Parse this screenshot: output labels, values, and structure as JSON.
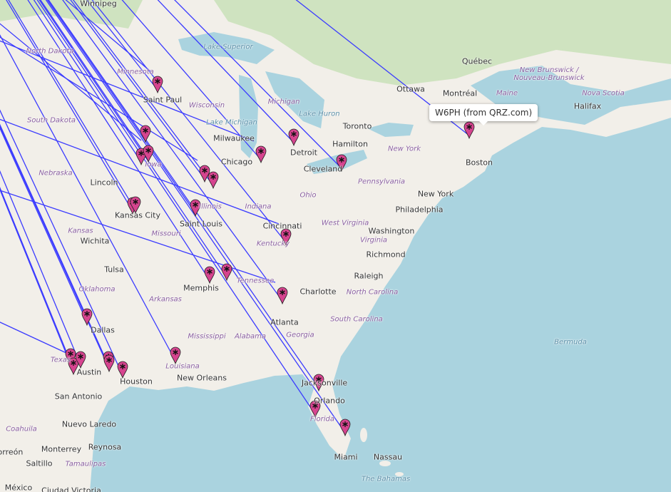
{
  "map": {
    "tooltip": "W6PH (from QRZ.com)",
    "colors": {
      "water": "#aad3df",
      "land": "#f2efe9",
      "forest": "#cfe3c0",
      "line": "#3b3bff",
      "marker": "#d6448f"
    },
    "marker_icon": "map-pin-asterisk-icon",
    "cities": [
      "Winnipeg",
      "Saint Paul",
      "Milwaukee",
      "Chicago",
      "Detroit",
      "Toronto",
      "Hamilton",
      "Cleveland",
      "Ottawa",
      "Montréal",
      "Québec",
      "Boston",
      "New York",
      "Philadelphia",
      "Washington",
      "Richmond",
      "Lincoln",
      "Kansas City",
      "Saint Louis",
      "Cincinnati",
      "Wichita",
      "Tulsa",
      "Memphis",
      "Charlotte",
      "Raleigh",
      "Atlanta",
      "Dallas",
      "Austin",
      "Houston",
      "San Antonio",
      "New Orleans",
      "Jacksonville",
      "Orlando",
      "Miami",
      "Nassau",
      "Halifax",
      "Nuevo Laredo",
      "Monterrey",
      "Reynosa",
      "Saltillo",
      "Ciudad Victoria",
      "México",
      "Torreón"
    ],
    "regions": [
      "North Dakota",
      "Minnesota",
      "South Dakota",
      "Wisconsin",
      "Michigan",
      "Nebraska",
      "Iowa",
      "Illinois",
      "Indiana",
      "Ohio",
      "Pennsylvania",
      "New York",
      "Kansas",
      "Missouri",
      "Kentucky",
      "West Virginia",
      "Virginia",
      "Oklahoma",
      "Arkansas",
      "Tennessee",
      "North Carolina",
      "South Carolina",
      "Mississippi",
      "Alabama",
      "Georgia",
      "Louisiana",
      "Texas",
      "Florida",
      "Maine",
      "New Brunswick / Nouveau-Brunswick",
      "Nova Scotia",
      "Coahuila",
      "Tamaulipas"
    ],
    "water": [
      "Lake Superior",
      "Lake Michigan",
      "Lake Huron",
      "Bermuda",
      "The Bahamas"
    ]
  }
}
